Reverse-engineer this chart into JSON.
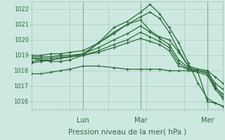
{
  "background_color": "#cce8e0",
  "grid_color": "#aaccbb",
  "line_color": "#2d6a3a",
  "title": "Pression niveau de la mer( hPa )",
  "ylim": [
    1015.5,
    1022.5
  ],
  "yticks": [
    1016,
    1017,
    1018,
    1019,
    1020,
    1021,
    1022
  ],
  "day_positions": [
    0.27,
    0.57,
    0.92
  ],
  "day_labels": [
    "Lun",
    "Mar",
    "Mer"
  ],
  "lines": [
    {
      "x": [
        0.0,
        0.05,
        0.1,
        0.15,
        0.2,
        0.27,
        0.35,
        0.43,
        0.5,
        0.57,
        0.62,
        0.67,
        0.72,
        0.77,
        0.82,
        0.87,
        0.92,
        0.96,
        1.0
      ],
      "y": [
        1018.8,
        1018.7,
        1018.6,
        1018.6,
        1018.7,
        1019.0,
        1019.8,
        1020.8,
        1021.2,
        1021.8,
        1022.3,
        1021.7,
        1020.8,
        1019.8,
        1018.5,
        1017.2,
        1016.2,
        1015.9,
        1015.7
      ]
    },
    {
      "x": [
        0.0,
        0.05,
        0.1,
        0.15,
        0.2,
        0.27,
        0.35,
        0.43,
        0.5,
        0.57,
        0.62,
        0.67,
        0.72,
        0.77,
        0.82,
        0.87,
        0.92,
        0.96,
        1.0
      ],
      "y": [
        1018.5,
        1018.6,
        1018.7,
        1018.8,
        1018.9,
        1019.1,
        1019.8,
        1020.5,
        1021.0,
        1021.5,
        1021.8,
        1021.4,
        1020.5,
        1019.3,
        1018.3,
        1018.1,
        1018.0,
        1017.0,
        1016.3
      ]
    },
    {
      "x": [
        0.0,
        0.05,
        0.1,
        0.15,
        0.2,
        0.27,
        0.35,
        0.43,
        0.5,
        0.57,
        0.62,
        0.67,
        0.72,
        0.77,
        0.82,
        0.87,
        0.92,
        0.96,
        1.0
      ],
      "y": [
        1019.0,
        1019.0,
        1019.1,
        1019.1,
        1019.2,
        1019.3,
        1019.8,
        1020.4,
        1021.0,
        1021.3,
        1020.6,
        1020.2,
        1020.0,
        1019.2,
        1018.3,
        1018.1,
        1018.0,
        1017.6,
        1017.2
      ]
    },
    {
      "x": [
        0.0,
        0.05,
        0.1,
        0.15,
        0.2,
        0.27,
        0.35,
        0.43,
        0.5,
        0.57,
        0.62,
        0.67,
        0.72,
        0.77,
        0.82,
        0.87,
        0.92,
        0.96,
        1.0
      ],
      "y": [
        1018.9,
        1018.9,
        1018.9,
        1019.0,
        1019.0,
        1019.1,
        1019.5,
        1020.0,
        1020.4,
        1020.9,
        1020.5,
        1020.1,
        1019.7,
        1018.7,
        1018.2,
        1018.0,
        1017.9,
        1017.2,
        1016.8
      ]
    },
    {
      "x": [
        0.0,
        0.05,
        0.1,
        0.15,
        0.2,
        0.27,
        0.35,
        0.43,
        0.5,
        0.57,
        0.62,
        0.67,
        0.72,
        0.77,
        0.82,
        0.87,
        0.92,
        0.96,
        1.0
      ],
      "y": [
        1018.6,
        1018.7,
        1018.7,
        1018.8,
        1018.9,
        1019.0,
        1019.3,
        1019.7,
        1020.0,
        1020.5,
        1020.2,
        1019.9,
        1019.5,
        1018.5,
        1018.1,
        1018.0,
        1017.8,
        1016.9,
        1016.5
      ]
    },
    {
      "x": [
        0.0,
        0.05,
        0.1,
        0.15,
        0.2,
        0.27,
        0.35,
        0.43,
        0.5,
        0.57,
        0.62,
        0.67,
        0.72,
        0.77,
        0.82,
        0.87,
        0.92,
        0.96,
        1.0
      ],
      "y": [
        1018.8,
        1018.8,
        1018.8,
        1018.9,
        1018.9,
        1019.0,
        1019.2,
        1019.5,
        1019.8,
        1020.1,
        1019.9,
        1019.7,
        1019.3,
        1018.3,
        1018.1,
        1017.9,
        1017.7,
        1016.8,
        1016.2
      ]
    },
    {
      "x": [
        0.0,
        0.05,
        0.1,
        0.15,
        0.2,
        0.27,
        0.35,
        0.43,
        0.5,
        0.57,
        0.62,
        0.67,
        0.72,
        0.77,
        0.82,
        0.87,
        0.92,
        0.96,
        1.0
      ],
      "y": [
        1017.8,
        1017.8,
        1017.9,
        1018.0,
        1018.1,
        1018.3,
        1018.3,
        1018.2,
        1018.1,
        1018.1,
        1018.1,
        1018.1,
        1018.0,
        1018.0,
        1018.0,
        1017.9,
        1016.0,
        1015.9,
        1015.7
      ]
    }
  ]
}
